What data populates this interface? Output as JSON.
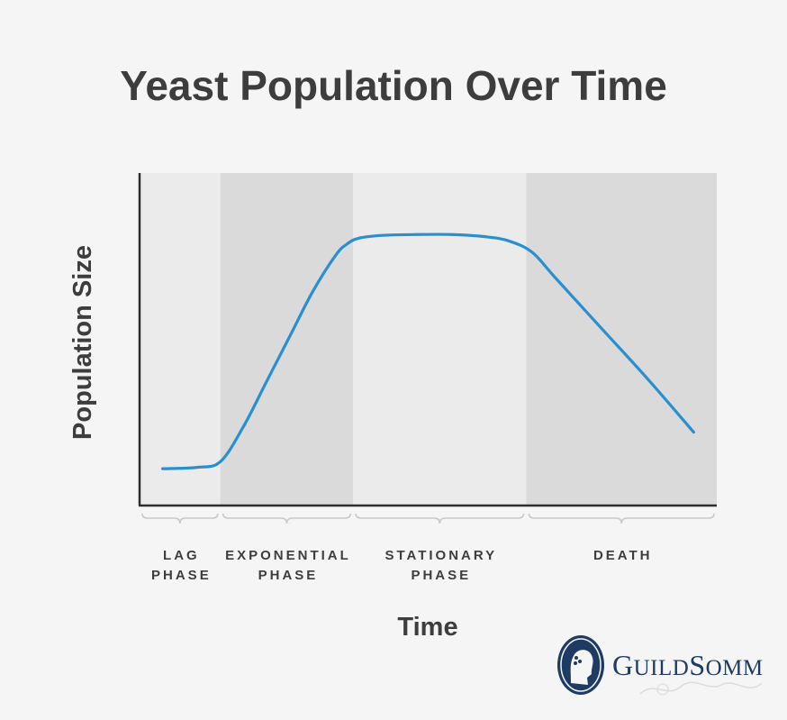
{
  "chart_data": {
    "type": "line",
    "title": "Yeast Population Over Time",
    "xlabel": "Time",
    "ylabel": "Population Size",
    "grid": false,
    "phases": [
      {
        "lines": [
          "LAG",
          "PHASE"
        ],
        "start": 0,
        "end": 14,
        "shade": "#ebebeb"
      },
      {
        "lines": [
          "EXPONENTIAL",
          "PHASE"
        ],
        "start": 14,
        "end": 37,
        "shade": "#dadada"
      },
      {
        "lines": [
          "STATIONARY",
          "PHASE"
        ],
        "start": 37,
        "end": 67,
        "shade": "#ebebeb"
      },
      {
        "lines": [
          "DEATH"
        ],
        "start": 67,
        "end": 100,
        "shade": "#dadada"
      }
    ],
    "series": [
      {
        "color": "#2a8fd0",
        "x": [
          4,
          10,
          14,
          18,
          22,
          26,
          30,
          34,
          36,
          38,
          42,
          48,
          54,
          60,
          64,
          68,
          72,
          80,
          88,
          96
        ],
        "y": [
          7,
          7.5,
          9.5,
          22,
          38,
          54,
          70,
          83,
          87,
          89,
          90,
          90.3,
          90.3,
          89.5,
          88,
          84,
          75,
          57,
          39,
          20
        ]
      }
    ],
    "xlim": [
      0,
      100
    ],
    "ylim": [
      0,
      100
    ]
  },
  "logo": {
    "brand_initial_1": "G",
    "brand_rest_1": "UILD",
    "brand_initial_2": "S",
    "brand_rest_2": "OMM"
  }
}
